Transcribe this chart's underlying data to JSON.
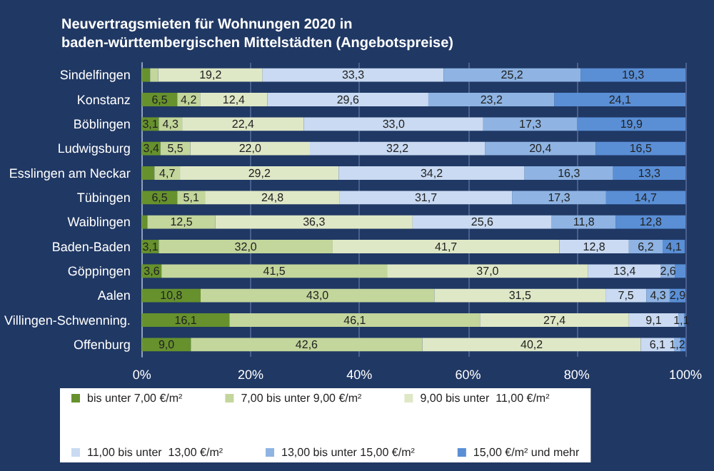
{
  "chart_data": {
    "type": "bar",
    "orientation": "horizontal",
    "stacked": true,
    "title": "Neuvertragsmieten für Wohnungen 2020 in\nbaden-württembergischen Mittelstädten (Angebotspreise)",
    "categories": [
      "Sindelfingen",
      "Konstanz",
      "Böblingen",
      "Ludwigsburg",
      "Esslingen am Neckar",
      "Tübingen",
      "Waiblingen",
      "Baden-Baden",
      "Göppingen",
      "Aalen",
      "Villingen-Schwenning.",
      "Offenburg"
    ],
    "series": [
      {
        "name": "bis unter 7,00 €/m²",
        "color": "#66912d",
        "values": [
          1.5,
          6.5,
          3.1,
          3.4,
          2.3,
          6.5,
          1.0,
          3.1,
          3.6,
          10.8,
          16.1,
          9.0
        ],
        "value_labels": [
          null,
          "6,5",
          "3,1",
          "3,4",
          null,
          "6,5",
          null,
          "3,1",
          "3,6",
          "10,8",
          "16,1",
          "9,0"
        ]
      },
      {
        "name": "7,00 bis unter 9,00 €/m²",
        "color": "#c3d69b",
        "values": [
          1.5,
          4.2,
          4.3,
          5.5,
          4.7,
          5.1,
          12.5,
          32.0,
          41.5,
          43.0,
          46.1,
          42.6
        ],
        "value_labels": [
          null,
          "4,2",
          "4,3",
          "5,5",
          "4,7",
          "5,1",
          "12,5",
          "32,0",
          "41,5",
          "43,0",
          "46,1",
          "42,6"
        ]
      },
      {
        "name": "9,00 bis unter  11,00 €/m²",
        "color": "#dfe8c6",
        "values": [
          19.2,
          12.4,
          22.4,
          22.0,
          29.2,
          24.8,
          36.3,
          41.7,
          37.0,
          31.5,
          27.4,
          40.2
        ],
        "value_labels": [
          "19,2",
          "12,4",
          "22,4",
          "22,0",
          "29,2",
          "24,8",
          "36,3",
          "41,7",
          "37,0",
          "31,5",
          "27,4",
          "40,2"
        ]
      },
      {
        "name": "11,00 bis unter  13,00 €/m²",
        "color": "#c9daf2",
        "values": [
          33.3,
          29.6,
          33.0,
          32.2,
          34.2,
          31.7,
          25.6,
          12.8,
          13.4,
          7.5,
          9.1,
          6.1
        ],
        "value_labels": [
          "33,3",
          "29,6",
          "33,0",
          "32,2",
          "34,2",
          "31,7",
          "25,6",
          "12,8",
          "13,4",
          "7,5",
          "9,1",
          "6,1"
        ]
      },
      {
        "name": "13,00 bis unter 15,00 €/m²",
        "color": "#8fb4e3",
        "values": [
          25.2,
          23.2,
          17.3,
          20.4,
          16.3,
          17.3,
          11.8,
          6.2,
          2.6,
          4.3,
          1.1,
          1.2
        ],
        "value_labels": [
          "25,2",
          "23,2",
          "17,3",
          "20,4",
          "16,3",
          "17,3",
          "11,8",
          "6,2",
          "2,6",
          "4,3",
          "1,1",
          "1,2"
        ]
      },
      {
        "name": "15,00 €/m² und mehr",
        "color": "#5a8fd6",
        "values": [
          19.3,
          24.1,
          19.9,
          16.5,
          13.3,
          14.7,
          12.8,
          4.1,
          1.9,
          2.9,
          0.2,
          0.9
        ],
        "value_labels": [
          "19,3",
          "24,1",
          "19,9",
          "16,5",
          "13,3",
          "14,7",
          "12,8",
          "4,1",
          null,
          "2,9",
          null,
          null
        ]
      }
    ],
    "xlim": [
      0,
      100
    ],
    "xticks": [
      {
        "value": 0,
        "label": "0%"
      },
      {
        "value": 20,
        "label": "20%"
      },
      {
        "value": 40,
        "label": "40%"
      },
      {
        "value": 60,
        "label": "60%"
      },
      {
        "value": 80,
        "label": "80%"
      },
      {
        "value": 100,
        "label": "100%"
      }
    ],
    "grid": "x",
    "legend": "bottom"
  }
}
